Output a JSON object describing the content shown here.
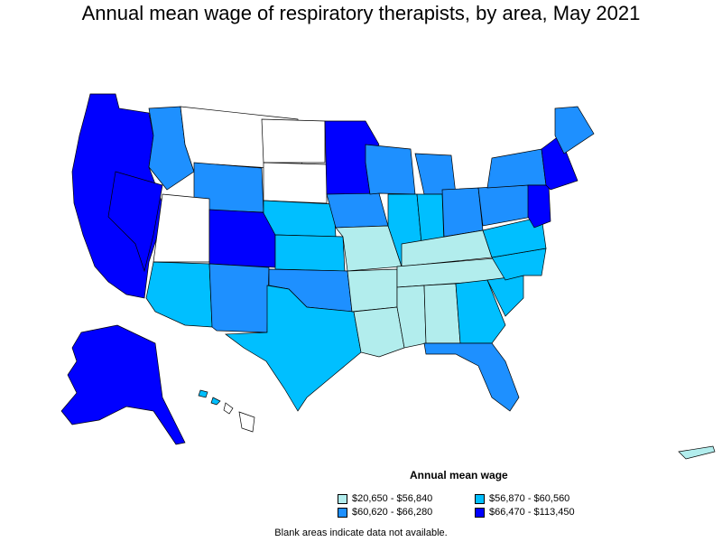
{
  "title": "Annual mean wage of respiratory therapists, by area, May 2021",
  "legend": {
    "title": "Annual mean wage",
    "items": [
      {
        "label": "$20,650 - $56,840",
        "color": "#b2eded"
      },
      {
        "label": "$56,870 - $60,560",
        "color": "#00bfff"
      },
      {
        "label": "$60,620 - $66,280",
        "color": "#1e90ff"
      },
      {
        "label": "$66,470 - $113,450",
        "color": "#0000ff"
      }
    ]
  },
  "footnote": "Blank areas indicate data not available.",
  "colors": {
    "tier1": "#b2eded",
    "tier2": "#00bfff",
    "tier3": "#1e90ff",
    "tier4": "#0000ff",
    "blank": "#ffffff",
    "border": "#000000"
  }
}
